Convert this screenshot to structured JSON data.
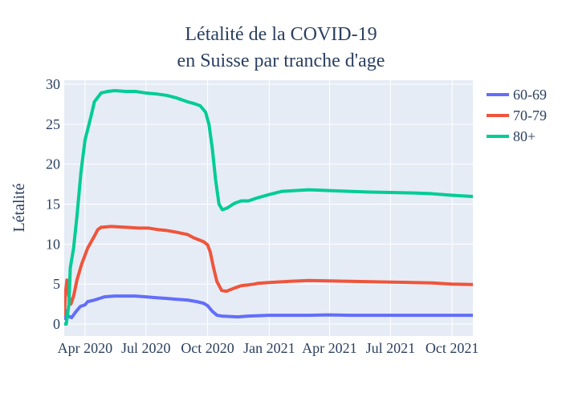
{
  "chart_data": {
    "type": "line",
    "title_lines": [
      "Létalité de la COVID-19",
      "en Suisse par tranche d'age"
    ],
    "ylabel": "Létalité",
    "xlabel": "",
    "ylim": [
      -1.5,
      30.5
    ],
    "xlim": [
      "2020-03-01",
      "2021-11-01"
    ],
    "grid": true,
    "legend_position": "top-right",
    "colors": {
      "plot_bg": "#e5ecf6",
      "paper_bg": "#ffffff",
      "text": "#2a3f5f"
    },
    "x_ticks": [
      {
        "date": "2020-04-01",
        "label": "Apr 2020"
      },
      {
        "date": "2020-07-01",
        "label": "Jul 2020"
      },
      {
        "date": "2020-10-01",
        "label": "Oct 2020"
      },
      {
        "date": "2021-01-01",
        "label": "Jan 2021"
      },
      {
        "date": "2021-04-01",
        "label": "Apr 2021"
      },
      {
        "date": "2021-07-01",
        "label": "Jul 2021"
      },
      {
        "date": "2021-10-01",
        "label": "Oct 2021"
      }
    ],
    "y_ticks": [
      0,
      5,
      10,
      15,
      20,
      25,
      30
    ],
    "series": [
      {
        "name": "60-69",
        "color": "#636efa",
        "points": [
          [
            "2020-03-01",
            0.5
          ],
          [
            "2020-03-03",
            1.7
          ],
          [
            "2020-03-07",
            1.0
          ],
          [
            "2020-03-12",
            0.8
          ],
          [
            "2020-03-18",
            1.5
          ],
          [
            "2020-03-25",
            2.2
          ],
          [
            "2020-04-01",
            2.4
          ],
          [
            "2020-04-05",
            2.8
          ],
          [
            "2020-04-15",
            3.0
          ],
          [
            "2020-04-30",
            3.4
          ],
          [
            "2020-05-15",
            3.5
          ],
          [
            "2020-06-01",
            3.5
          ],
          [
            "2020-06-15",
            3.5
          ],
          [
            "2020-07-01",
            3.4
          ],
          [
            "2020-07-15",
            3.3
          ],
          [
            "2020-08-01",
            3.2
          ],
          [
            "2020-08-15",
            3.1
          ],
          [
            "2020-09-01",
            3.0
          ],
          [
            "2020-09-15",
            2.8
          ],
          [
            "2020-09-25",
            2.6
          ],
          [
            "2020-10-01",
            2.3
          ],
          [
            "2020-10-08",
            1.6
          ],
          [
            "2020-10-15",
            1.1
          ],
          [
            "2020-10-22",
            1.0
          ],
          [
            "2020-11-15",
            0.9
          ],
          [
            "2020-12-01",
            1.0
          ],
          [
            "2021-01-01",
            1.1
          ],
          [
            "2021-02-01",
            1.1
          ],
          [
            "2021-03-01",
            1.1
          ],
          [
            "2021-04-01",
            1.15
          ],
          [
            "2021-05-01",
            1.1
          ],
          [
            "2021-06-01",
            1.1
          ],
          [
            "2021-07-01",
            1.1
          ],
          [
            "2021-08-01",
            1.1
          ],
          [
            "2021-09-01",
            1.1
          ],
          [
            "2021-10-01",
            1.1
          ],
          [
            "2021-11-01",
            1.1
          ]
        ]
      },
      {
        "name": "70-79",
        "color": "#ef553b",
        "points": [
          [
            "2020-03-01",
            1.0
          ],
          [
            "2020-03-03",
            4.0
          ],
          [
            "2020-03-05",
            5.5
          ],
          [
            "2020-03-08",
            3.5
          ],
          [
            "2020-03-11",
            2.5
          ],
          [
            "2020-03-15",
            3.5
          ],
          [
            "2020-03-20",
            5.5
          ],
          [
            "2020-03-27",
            7.5
          ],
          [
            "2020-04-05",
            9.5
          ],
          [
            "2020-04-15",
            11.0
          ],
          [
            "2020-04-20",
            11.8
          ],
          [
            "2020-04-25",
            12.1
          ],
          [
            "2020-05-10",
            12.2
          ],
          [
            "2020-06-01",
            12.1
          ],
          [
            "2020-06-20",
            12.0
          ],
          [
            "2020-07-05",
            12.0
          ],
          [
            "2020-07-20",
            11.8
          ],
          [
            "2020-08-01",
            11.7
          ],
          [
            "2020-08-15",
            11.5
          ],
          [
            "2020-09-01",
            11.2
          ],
          [
            "2020-09-10",
            10.8
          ],
          [
            "2020-09-25",
            10.3
          ],
          [
            "2020-10-01",
            9.9
          ],
          [
            "2020-10-05",
            9.0
          ],
          [
            "2020-10-10",
            7.0
          ],
          [
            "2020-10-15",
            5.3
          ],
          [
            "2020-10-22",
            4.2
          ],
          [
            "2020-10-29",
            4.1
          ],
          [
            "2020-11-10",
            4.5
          ],
          [
            "2020-11-20",
            4.8
          ],
          [
            "2020-12-01",
            4.9
          ],
          [
            "2020-12-10",
            5.0
          ],
          [
            "2020-12-15",
            5.1
          ],
          [
            "2021-01-01",
            5.2
          ],
          [
            "2021-02-01",
            5.35
          ],
          [
            "2021-03-01",
            5.45
          ],
          [
            "2021-04-01",
            5.4
          ],
          [
            "2021-05-01",
            5.35
          ],
          [
            "2021-06-01",
            5.3
          ],
          [
            "2021-07-01",
            5.25
          ],
          [
            "2021-08-01",
            5.2
          ],
          [
            "2021-09-01",
            5.15
          ],
          [
            "2021-10-01",
            5.0
          ],
          [
            "2021-11-01",
            4.95
          ]
        ]
      },
      {
        "name": "80+",
        "color": "#00cc96",
        "points": [
          [
            "2020-03-01",
            0.0
          ],
          [
            "2020-03-04",
            0.0
          ],
          [
            "2020-03-08",
            2.5
          ],
          [
            "2020-03-10",
            7.0
          ],
          [
            "2020-03-15",
            9.5
          ],
          [
            "2020-03-20",
            13.5
          ],
          [
            "2020-03-26",
            19.0
          ],
          [
            "2020-04-01",
            23.0
          ],
          [
            "2020-04-10",
            26.0
          ],
          [
            "2020-04-15",
            27.8
          ],
          [
            "2020-04-25",
            28.9
          ],
          [
            "2020-05-05",
            29.1
          ],
          [
            "2020-05-15",
            29.2
          ],
          [
            "2020-06-01",
            29.1
          ],
          [
            "2020-06-15",
            29.1
          ],
          [
            "2020-07-01",
            28.9
          ],
          [
            "2020-07-15",
            28.8
          ],
          [
            "2020-08-01",
            28.6
          ],
          [
            "2020-08-15",
            28.3
          ],
          [
            "2020-09-01",
            27.8
          ],
          [
            "2020-09-10",
            27.6
          ],
          [
            "2020-09-20",
            27.3
          ],
          [
            "2020-09-28",
            26.5
          ],
          [
            "2020-10-03",
            25.0
          ],
          [
            "2020-10-08",
            22.0
          ],
          [
            "2020-10-13",
            18.0
          ],
          [
            "2020-10-18",
            15.0
          ],
          [
            "2020-10-23",
            14.3
          ],
          [
            "2020-10-30",
            14.5
          ],
          [
            "2020-11-10",
            15.1
          ],
          [
            "2020-11-20",
            15.4
          ],
          [
            "2020-12-01",
            15.4
          ],
          [
            "2020-12-15",
            15.8
          ],
          [
            "2021-01-01",
            16.2
          ],
          [
            "2021-01-20",
            16.6
          ],
          [
            "2021-03-01",
            16.8
          ],
          [
            "2021-04-01",
            16.7
          ],
          [
            "2021-05-01",
            16.6
          ],
          [
            "2021-06-01",
            16.5
          ],
          [
            "2021-07-01",
            16.45
          ],
          [
            "2021-08-01",
            16.4
          ],
          [
            "2021-09-01",
            16.3
          ],
          [
            "2021-10-01",
            16.1
          ],
          [
            "2021-11-01",
            15.95
          ]
        ]
      }
    ]
  }
}
